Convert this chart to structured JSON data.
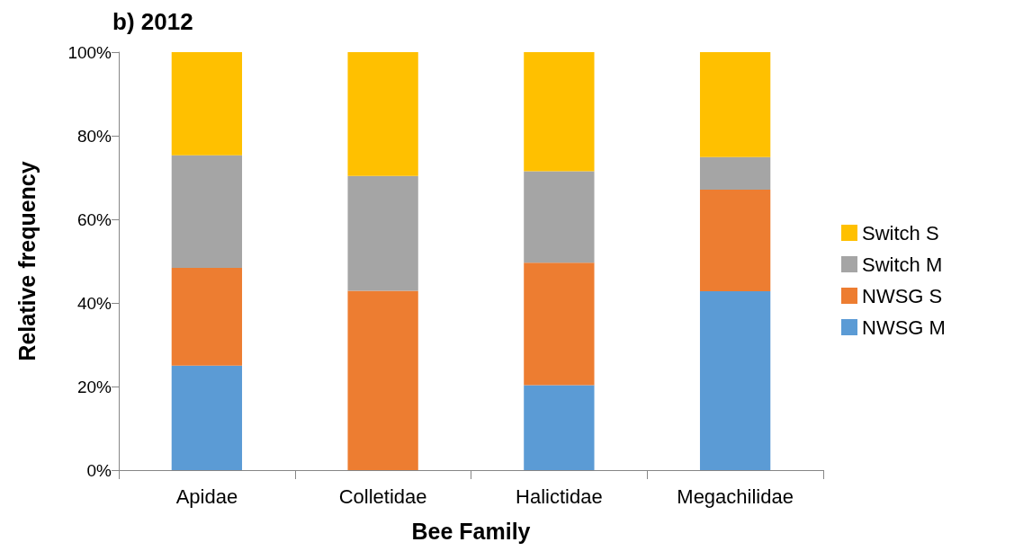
{
  "chart_data": {
    "type": "bar",
    "title": "b) 2012",
    "xlabel": "Bee Family",
    "ylabel": "Relative frequency",
    "categories": [
      "Apidae",
      "Colletidae",
      "Halictidae",
      "Megachilidae"
    ],
    "stacked": true,
    "ylim": [
      0,
      100
    ],
    "yticks": [
      {
        "value": 0,
        "label": "0%"
      },
      {
        "value": 20,
        "label": "20%"
      },
      {
        "value": 40,
        "label": "40%"
      },
      {
        "value": 60,
        "label": "60%"
      },
      {
        "value": 80,
        "label": "80%"
      },
      {
        "value": 100,
        "label": "100%"
      }
    ],
    "grid": false,
    "legend": "right",
    "series": [
      {
        "name": "NWSG M",
        "color": "#5b9bd5",
        "values": [
          25,
          0,
          20.3,
          42.8
        ]
      },
      {
        "name": "NWSG S",
        "color": "#ed7d31",
        "values": [
          23.4,
          42.9,
          29.3,
          24.3
        ]
      },
      {
        "name": "Switch M",
        "color": "#a5a5a5",
        "values": [
          26.9,
          27.5,
          21.9,
          7.8
        ]
      },
      {
        "name": "Switch S",
        "color": "#ffc000",
        "values": [
          24.7,
          29.6,
          28.5,
          25.1
        ]
      }
    ]
  }
}
